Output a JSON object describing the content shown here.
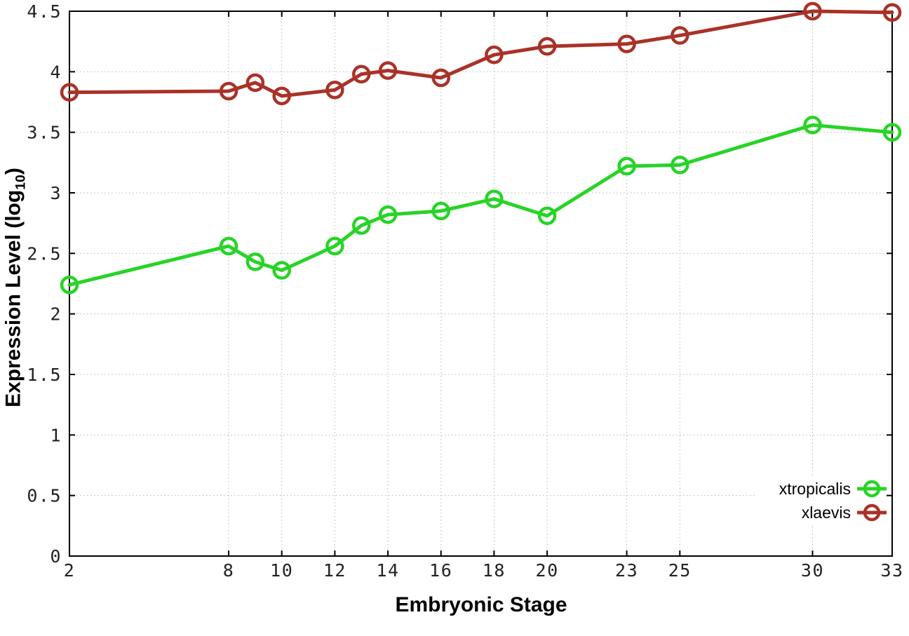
{
  "chart_data": {
    "type": "line",
    "title": "",
    "xlabel": "Embryonic Stage",
    "ylabel_prefix": "Expression Level (log",
    "ylabel_sub": "10",
    "ylabel_suffix": ")",
    "x": [
      2,
      8,
      9,
      10,
      12,
      13,
      14,
      16,
      18,
      20,
      23,
      25,
      30,
      33
    ],
    "series": [
      {
        "name": "xtropicalis",
        "color": "#27d427",
        "values": [
          2.24,
          2.56,
          2.43,
          2.36,
          2.56,
          2.73,
          2.82,
          2.85,
          2.95,
          2.81,
          3.22,
          3.23,
          3.56,
          3.5
        ]
      },
      {
        "name": "xlaevis",
        "color": "#a93228",
        "values": [
          3.83,
          3.84,
          3.91,
          3.8,
          3.85,
          3.98,
          4.01,
          3.95,
          4.14,
          4.21,
          4.23,
          4.3,
          4.5,
          4.49
        ]
      }
    ],
    "xlim": [
      2,
      33
    ],
    "ylim": [
      0,
      4.5
    ],
    "x_tick_values": [
      2,
      8,
      10,
      12,
      14,
      16,
      18,
      20,
      23,
      25,
      30,
      33
    ],
    "y_tick_values": [
      0,
      0.5,
      1,
      1.5,
      2,
      2.5,
      3,
      3.5,
      4,
      4.5
    ],
    "grid": true,
    "grid_style": "dotted",
    "legend_position": "bottom-right",
    "marker": "open-circle",
    "colors": {
      "background": "#ffffff",
      "border": "#000000",
      "grid": "#b5b5b5",
      "tick_text": "#222222",
      "axis_title_text": "#000000"
    }
  }
}
